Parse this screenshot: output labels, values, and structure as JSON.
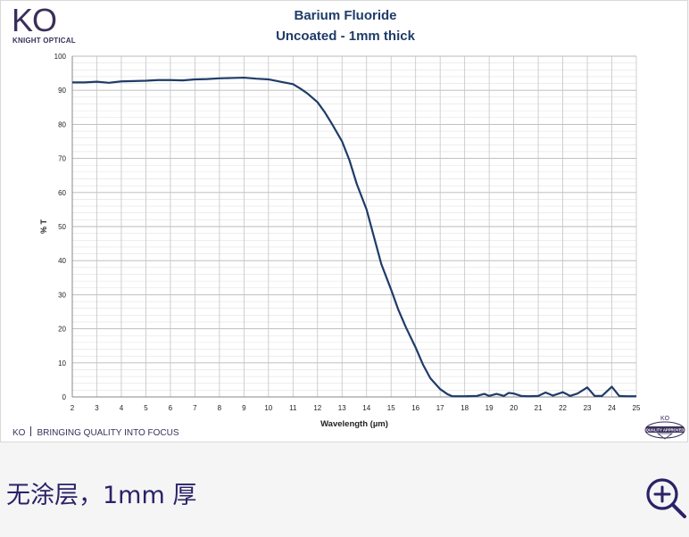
{
  "logo": {
    "mark": "KO",
    "subtitle": "KNIGHT OPTICAL"
  },
  "footer": {
    "brand": "KO",
    "tagline": "BRINGING QUALITY INTO FOCUS",
    "badge_top": "KO",
    "badge_bottom": "QUALITY APPROVED"
  },
  "caption": "无涂层，1mm 厚",
  "zoom": {
    "icon": "zoom-in-icon"
  },
  "colors": {
    "line": "#1f3c68",
    "title": "#1f3c68",
    "brand": "#3a2f5b",
    "caption": "#2a2268"
  },
  "chart_data": {
    "type": "line",
    "title": "Barium Fluoride",
    "subtitle": "Uncoated - 1mm thick",
    "xlabel": "Wavelength (µm)",
    "ylabel": "% T",
    "xlim": [
      2,
      25
    ],
    "ylim": [
      0,
      100
    ],
    "xticks": [
      2,
      3,
      4,
      5,
      6,
      7,
      8,
      9,
      10,
      11,
      12,
      13,
      14,
      15,
      16,
      17,
      18,
      19,
      20,
      21,
      22,
      23,
      24,
      25
    ],
    "yticks": [
      0,
      10,
      20,
      30,
      40,
      50,
      60,
      70,
      80,
      90,
      100
    ],
    "grid": true,
    "series": [
      {
        "x": [
          2,
          2.5,
          3,
          3.5,
          4,
          4.5,
          5,
          5.5,
          6,
          6.5,
          7,
          7.5,
          8,
          8.5,
          9,
          9.5,
          10,
          10.5,
          11,
          11.3,
          11.6,
          12,
          12.3,
          12.6,
          13,
          13.3,
          13.6,
          14,
          14.3,
          14.6,
          15,
          15.3,
          15.6,
          16,
          16.3,
          16.6,
          17,
          17.3,
          17.5,
          18,
          18.5,
          18.8,
          19,
          19.3,
          19.6,
          19.8,
          20,
          20.3,
          20.6,
          21,
          21.3,
          21.6,
          22,
          22.3,
          22.6,
          23,
          23.3,
          23.6,
          24,
          24.3,
          24.6,
          25
        ],
        "y": [
          92.3,
          92.3,
          92.5,
          92.2,
          92.6,
          92.7,
          92.8,
          93.0,
          93.0,
          92.9,
          93.2,
          93.3,
          93.5,
          93.6,
          93.7,
          93.4,
          93.2,
          92.5,
          91.8,
          90.5,
          89.0,
          86.5,
          83.5,
          80.0,
          75.0,
          69.5,
          62.5,
          55.0,
          47.0,
          39.0,
          31.5,
          25.5,
          20.5,
          14.5,
          9.5,
          5.5,
          2.3,
          0.8,
          0.2,
          0.2,
          0.3,
          0.9,
          0.3,
          0.9,
          0.3,
          1.2,
          1.0,
          0.3,
          0.2,
          0.3,
          1.3,
          0.4,
          1.4,
          0.3,
          1.0,
          2.8,
          0.3,
          0.3,
          3.0,
          0.3,
          0.2,
          0.2
        ]
      }
    ]
  }
}
